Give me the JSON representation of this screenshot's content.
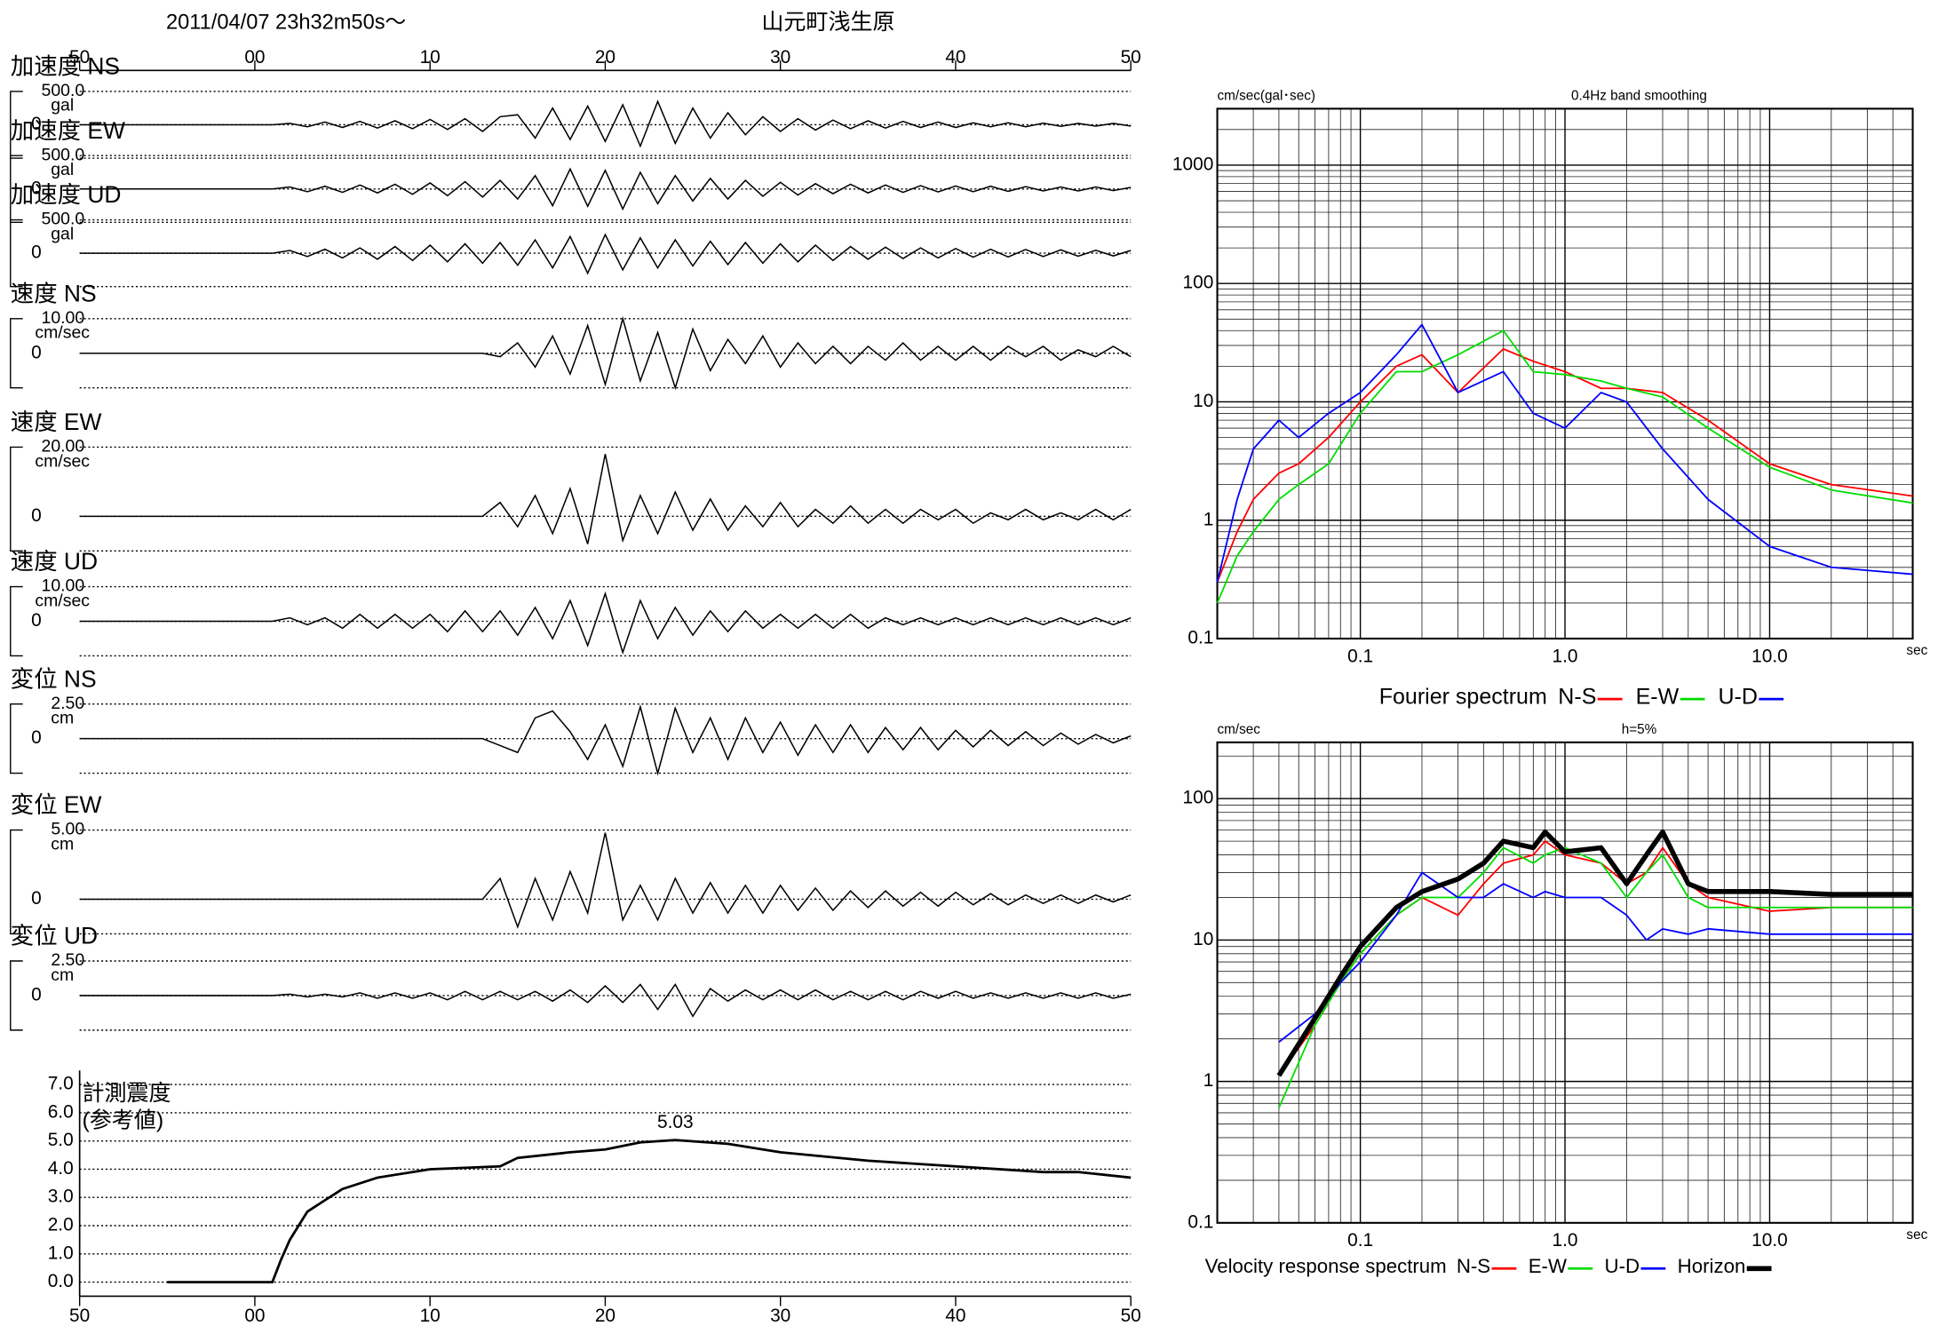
{
  "header": {
    "datetime": "2011/04/07  23h32m50s〜",
    "station": "山元町浅生原"
  },
  "chart_data": [
    {
      "type": "waveform",
      "xlim": [
        -10,
        50
      ],
      "xticks": [
        {
          "value": -10,
          "label": "50"
        },
        {
          "value": 0,
          "label": "00"
        },
        10,
        20,
        30,
        40,
        {
          "value": 50,
          "label": "50"
        }
      ],
      "x": [
        -10,
        -9,
        -8,
        -7,
        -6,
        -5,
        -4,
        -3,
        -2,
        -1,
        0,
        1,
        2,
        3,
        4,
        5,
        6,
        7,
        8,
        9,
        10,
        11,
        12,
        13,
        14,
        15,
        16,
        17,
        18,
        19,
        20,
        21,
        22,
        23,
        24,
        25,
        26,
        27,
        28,
        29,
        30,
        31,
        32,
        33,
        34,
        35,
        36,
        37,
        38,
        39,
        40,
        41,
        42,
        43,
        44,
        45,
        46,
        47,
        48,
        49,
        50
      ],
      "series": [
        {
          "name": "加速度 NS",
          "unit": "gal",
          "color": "#000000",
          "ylim": [
            -500,
            500
          ],
          "yticks": [
            {
              "value": 500,
              "label": "500.0"
            },
            0
          ],
          "values": [
            0,
            0,
            0,
            0,
            0,
            0,
            0,
            0,
            0,
            0,
            0,
            0,
            20,
            -30,
            40,
            -40,
            50,
            -50,
            60,
            -60,
            80,
            -70,
            90,
            -100,
            120,
            150,
            -200,
            250,
            -220,
            280,
            -250,
            300,
            -320,
            350,
            -280,
            250,
            -200,
            180,
            -150,
            120,
            -100,
            90,
            -80,
            70,
            -60,
            60,
            -50,
            50,
            -40,
            40,
            -40,
            30,
            -30,
            30,
            -30,
            25,
            -25,
            20,
            -20,
            20,
            -20
          ]
        },
        {
          "name": "加速度 EW",
          "unit": "gal",
          "color": "#000000",
          "ylim": [
            -500,
            500
          ],
          "yticks": [
            {
              "value": 500,
              "label": "500.0"
            },
            0
          ],
          "values": [
            0,
            0,
            0,
            0,
            0,
            0,
            0,
            0,
            0,
            0,
            0,
            0,
            30,
            -40,
            40,
            -50,
            60,
            -60,
            70,
            -80,
            90,
            -100,
            110,
            -120,
            130,
            -150,
            200,
            -250,
            300,
            -260,
            280,
            -300,
            250,
            -220,
            200,
            -180,
            160,
            -150,
            130,
            -110,
            100,
            -90,
            80,
            -70,
            70,
            -60,
            60,
            -50,
            50,
            -45,
            45,
            -40,
            40,
            -35,
            35,
            -30,
            30,
            -30,
            30,
            -25,
            25
          ]
        },
        {
          "name": "加速度 UD",
          "unit": "gal",
          "color": "#000000",
          "ylim": [
            -500,
            500
          ],
          "yticks": [
            {
              "value": 500,
              "label": "500.0"
            },
            0
          ],
          "values": [
            0,
            0,
            0,
            0,
            0,
            0,
            0,
            0,
            0,
            0,
            0,
            0,
            40,
            -50,
            60,
            -70,
            80,
            -90,
            100,
            -110,
            120,
            -130,
            140,
            -150,
            160,
            -180,
            200,
            -220,
            250,
            -300,
            280,
            -250,
            230,
            -220,
            200,
            -190,
            180,
            -170,
            160,
            -150,
            140,
            -130,
            120,
            -110,
            100,
            -90,
            90,
            -80,
            80,
            -70,
            70,
            -60,
            60,
            -55,
            55,
            -50,
            50,
            -45,
            45,
            -40,
            40
          ]
        },
        {
          "name": "速度 NS",
          "unit": "cm/sec",
          "color": "#000000",
          "ylim": [
            -10,
            10
          ],
          "yticks": [
            {
              "value": 10,
              "label": "10.00"
            },
            0
          ],
          "values": [
            0,
            0,
            0,
            0,
            0,
            0,
            0,
            0,
            0,
            0,
            0,
            0,
            0,
            0,
            0,
            0,
            0,
            0,
            0,
            0,
            0,
            0,
            0,
            0,
            -1,
            3,
            -4,
            5,
            -6,
            8,
            -9,
            10,
            -8,
            6,
            -10,
            7,
            -5,
            4,
            -3,
            5,
            -4,
            3,
            -3,
            2,
            -3,
            2,
            -2,
            3,
            -2,
            2,
            -2,
            2,
            -2,
            2,
            -1,
            2,
            -2,
            1,
            -1,
            2,
            -1
          ]
        },
        {
          "name": "速度 EW",
          "unit": "cm/sec",
          "color": "#000000",
          "ylim": [
            -10,
            20
          ],
          "yticks": [
            {
              "value": 20,
              "label": "20.00"
            },
            0
          ],
          "values": [
            0,
            0,
            0,
            0,
            0,
            0,
            0,
            0,
            0,
            0,
            0,
            0,
            0,
            0,
            0,
            0,
            0,
            0,
            0,
            0,
            0,
            0,
            0,
            0,
            4,
            -3,
            6,
            -5,
            8,
            -8,
            18,
            -7,
            6,
            -5,
            7,
            -4,
            5,
            -4,
            3,
            -3,
            4,
            -3,
            2,
            -2,
            3,
            -2,
            2,
            -2,
            2,
            -1,
            2,
            -2,
            1,
            -1,
            2,
            -1,
            1,
            -1,
            2,
            -1,
            2
          ]
        },
        {
          "name": "速度 UD",
          "unit": "cm/sec",
          "color": "#000000",
          "ylim": [
            -10,
            10
          ],
          "yticks": [
            {
              "value": 10,
              "label": "10.00"
            },
            0
          ],
          "values": [
            0,
            0,
            0,
            0,
            0,
            0,
            0,
            0,
            0,
            0,
            0,
            0,
            1,
            -1,
            1,
            -2,
            2,
            -2,
            2,
            -2,
            2,
            -3,
            3,
            -3,
            3,
            -4,
            4,
            -5,
            6,
            -7,
            8,
            -9,
            6,
            -5,
            4,
            -4,
            3,
            -3,
            3,
            -2,
            2,
            -2,
            2,
            -2,
            2,
            -2,
            1,
            -1,
            1,
            -1,
            1,
            -1,
            1,
            -1,
            1,
            -1,
            1,
            -1,
            1,
            -1,
            1
          ]
        },
        {
          "name": "変位 NS",
          "unit": "cm",
          "color": "#000000",
          "ylim": [
            -2.5,
            2.5
          ],
          "yticks": [
            {
              "value": 2.5,
              "label": "2.50"
            },
            0
          ],
          "values": [
            0,
            0,
            0,
            0,
            0,
            0,
            0,
            0,
            0,
            0,
            0,
            0,
            0,
            0,
            0,
            0,
            0,
            0,
            0,
            0,
            0,
            0,
            0,
            0,
            -0.5,
            -1,
            1.5,
            2,
            0.5,
            -1.5,
            1,
            -2,
            2.3,
            -2.5,
            2.2,
            -1,
            1.5,
            -1.5,
            1.5,
            -1,
            1.2,
            -1.2,
            1,
            -1,
            1,
            -1,
            0.8,
            -0.8,
            0.8,
            -0.8,
            0.6,
            -0.6,
            0.6,
            -0.5,
            0.5,
            -0.5,
            0.4,
            -0.4,
            0.3,
            -0.3,
            0.2
          ]
        },
        {
          "name": "変位 EW",
          "unit": "cm",
          "color": "#000000",
          "ylim": [
            -2.5,
            5
          ],
          "yticks": [
            {
              "value": 5,
              "label": "5.00"
            },
            0
          ],
          "values": [
            0,
            0,
            0,
            0,
            0,
            0,
            0,
            0,
            0,
            0,
            0,
            0,
            0,
            0,
            0,
            0,
            0,
            0,
            0,
            0,
            0,
            0,
            0,
            0,
            1.5,
            -2,
            1.5,
            -1.5,
            2,
            -1,
            4.8,
            -1.5,
            1,
            -1.5,
            1.5,
            -1,
            1.2,
            -1,
            1,
            -1,
            1,
            -0.8,
            0.8,
            -0.8,
            0.6,
            -0.6,
            0.6,
            -0.5,
            0.5,
            -0.5,
            0.5,
            -0.4,
            0.4,
            -0.4,
            0.3,
            -0.3,
            0.3,
            -0.3,
            0.3,
            -0.2,
            0.3
          ]
        },
        {
          "name": "変位 UD",
          "unit": "cm",
          "color": "#000000",
          "ylim": [
            -2.5,
            2.5
          ],
          "yticks": [
            {
              "value": 2.5,
              "label": "2.50"
            },
            0
          ],
          "values": [
            0,
            0,
            0,
            0,
            0,
            0,
            0,
            0,
            0,
            0,
            0,
            0,
            0.1,
            -0.1,
            0.1,
            -0.1,
            0.2,
            -0.2,
            0.2,
            -0.2,
            0.2,
            -0.3,
            0.3,
            -0.3,
            0.3,
            -0.3,
            0.3,
            -0.4,
            0.4,
            -0.5,
            0.7,
            -0.5,
            0.8,
            -1,
            0.8,
            -1.5,
            0.5,
            -0.4,
            0.4,
            -0.3,
            0.4,
            -0.3,
            0.4,
            -0.3,
            0.3,
            -0.3,
            0.3,
            -0.3,
            0.3,
            -0.2,
            0.3,
            -0.2,
            0.2,
            -0.2,
            0.2,
            -0.2,
            0.2,
            -0.2,
            0.2,
            -0.2,
            0.1
          ]
        }
      ]
    },
    {
      "type": "line",
      "title": "計測震度",
      "subtitle": "(参考値)",
      "color": "#000000",
      "xlim": [
        -10,
        50
      ],
      "xticks": [
        {
          "value": -10,
          "label": "50"
        },
        {
          "value": 0,
          "label": "00"
        },
        10,
        20,
        30,
        40,
        {
          "value": 50,
          "label": "50"
        }
      ],
      "ylim": [
        -0.5,
        7.5
      ],
      "yticks": [
        {
          "value": 0,
          "label": "0.0"
        },
        {
          "value": 1,
          "label": "1.0"
        },
        {
          "value": 2,
          "label": "2.0"
        },
        {
          "value": 3,
          "label": "3.0"
        },
        {
          "value": 4,
          "label": "4.0"
        },
        {
          "value": 5,
          "label": "5.0"
        },
        {
          "value": 6,
          "label": "6.0"
        },
        {
          "value": 7,
          "label": "7.0"
        }
      ],
      "grid": true,
      "peak_index": 15,
      "x": [
        -5,
        0,
        1,
        1.5,
        2,
        3,
        4,
        5,
        7,
        10,
        14,
        15,
        18,
        20,
        22,
        24,
        27,
        30,
        35,
        40,
        45,
        47,
        50
      ],
      "values": [
        0,
        0,
        0,
        0.8,
        1.5,
        2.5,
        2.9,
        3.3,
        3.7,
        4.0,
        4.1,
        4.4,
        4.6,
        4.7,
        4.95,
        5.03,
        4.9,
        4.6,
        4.3,
        4.1,
        3.9,
        3.9,
        3.7
      ]
    },
    {
      "type": "loglog",
      "title": "Fourier spectrum",
      "subtitle": "0.4Hz band smoothing",
      "ylabel": "cm/sec(gal･sec)",
      "xlabel": "sec",
      "xlim": [
        0.02,
        50
      ],
      "ylim": [
        0.1,
        3000
      ],
      "xticks": [
        0.1,
        {
          "value": 1,
          "label": "1.0"
        },
        {
          "value": 10,
          "label": "10.0"
        }
      ],
      "yticks": [
        0.1,
        1,
        10,
        100,
        1000
      ],
      "grid": true,
      "x": [
        0.02,
        0.025,
        0.03,
        0.04,
        0.05,
        0.07,
        0.1,
        0.15,
        0.2,
        0.3,
        0.5,
        0.7,
        1,
        1.5,
        2,
        3,
        5,
        10,
        20,
        50
      ],
      "series": [
        {
          "name": "N-S",
          "color": "#ff0000",
          "linewidth": 1.3,
          "values": [
            0.3,
            0.8,
            1.5,
            2.5,
            3,
            5,
            10,
            20,
            25,
            12,
            28,
            22,
            18,
            13,
            13,
            12,
            7,
            3,
            2,
            1.6
          ]
        },
        {
          "name": "E-W",
          "color": "#00dd00",
          "linewidth": 1.3,
          "values": [
            0.2,
            0.5,
            0.8,
            1.5,
            2,
            3,
            8,
            18,
            18,
            25,
            40,
            18,
            17,
            15,
            13,
            11,
            6,
            2.8,
            1.8,
            1.4
          ]
        },
        {
          "name": "U-D",
          "color": "#0000ff",
          "linewidth": 1.3,
          "values": [
            0.3,
            1.5,
            4,
            7,
            5,
            8,
            12,
            25,
            45,
            12,
            18,
            8,
            6,
            12,
            10,
            4,
            1.5,
            0.6,
            0.4,
            0.35
          ]
        }
      ]
    },
    {
      "type": "loglog",
      "title": "Velocity response spectrum",
      "subtitle": "h=5%",
      "ylabel": "cm/sec",
      "xlabel": "sec",
      "xlim": [
        0.02,
        50
      ],
      "ylim": [
        0.1,
        250
      ],
      "xticks": [
        0.1,
        {
          "value": 1,
          "label": "1.0"
        },
        {
          "value": 10,
          "label": "10.0"
        }
      ],
      "yticks": [
        0.1,
        1,
        10,
        100
      ],
      "grid": true,
      "x": [
        0.04,
        0.06,
        0.08,
        0.1,
        0.15,
        0.2,
        0.3,
        0.4,
        0.5,
        0.7,
        0.8,
        1,
        1.5,
        2,
        2.5,
        3,
        4,
        5,
        10,
        20,
        50
      ],
      "series": [
        {
          "name": "N-S",
          "color": "#ff0000",
          "linewidth": 1.3,
          "values": [
            1.1,
            2.5,
            5,
            8,
            15,
            20,
            15,
            25,
            35,
            40,
            50,
            40,
            35,
            25,
            30,
            45,
            25,
            20,
            16,
            17,
            17
          ]
        },
        {
          "name": "E-W",
          "color": "#00dd00",
          "linewidth": 1.3,
          "values": [
            0.65,
            2.5,
            5,
            8,
            15,
            20,
            20,
            30,
            45,
            35,
            40,
            45,
            35,
            20,
            30,
            40,
            20,
            17,
            17,
            17,
            17
          ]
        },
        {
          "name": "U-D",
          "color": "#0000ff",
          "linewidth": 1.3,
          "values": [
            1.9,
            3,
            5,
            7,
            15,
            30,
            20,
            20,
            25,
            20,
            22,
            20,
            20,
            15,
            10,
            12,
            11,
            12,
            11,
            11,
            11
          ]
        },
        {
          "name": "Horizon",
          "color": "#000000",
          "linewidth": 4,
          "values": [
            1.1,
            2.8,
            5.5,
            9,
            17,
            22,
            27,
            35,
            50,
            45,
            58,
            42,
            45,
            25,
            40,
            58,
            25,
            22,
            22,
            21,
            21
          ]
        }
      ]
    }
  ]
}
